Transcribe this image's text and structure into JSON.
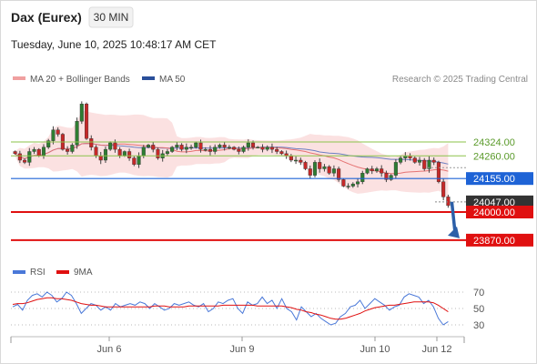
{
  "header": {
    "instrument": "Dax (Eurex)",
    "timeframe": "30 MIN",
    "datetime": "Tuesday, June 10, 2025 10:48:17 AM CET"
  },
  "legend": {
    "ma20_label": "MA 20 + Bollinger Bands",
    "ma50_label": "MA 50",
    "copyright": "Research © 2025 Trading Central",
    "rsi_label": "RSI",
    "rsi_ma_label": "9MA"
  },
  "colors": {
    "up": "#2e7d32",
    "down": "#c62828",
    "bollinger": "#f8c8c8",
    "ma20": "#e57373",
    "ma50": "#6b7fc2",
    "resistance_green": "#8bc34a",
    "pivot_blue": "#1e63d6",
    "support_red": "#e01010",
    "current_price_bg": "#333333",
    "arrow": "#2c5fa8",
    "rsi": "#4a78d8",
    "rsi_ma": "#e01010"
  },
  "chart_data": {
    "type": "candlestick",
    "title": "Dax (Eurex) 30 MIN",
    "x_ticks": [
      "Jun 6",
      "Jun 9",
      "Jun 10",
      "Jun 12"
    ],
    "y_axis": {
      "ylim": [
        23760,
        24560
      ]
    },
    "levels": [
      {
        "name": "resistance-2",
        "value": 24324.0,
        "label": "24324.00",
        "style": "thin-green"
      },
      {
        "name": "resistance-1",
        "value": 24260.0,
        "label": "24260.00",
        "style": "thin-green"
      },
      {
        "name": "pivot",
        "value": 24155.0,
        "label": "24155.00",
        "style": "blue-box"
      },
      {
        "name": "current-price",
        "value": 24047.0,
        "label": "24047.00",
        "style": "dark-box"
      },
      {
        "name": "support-1",
        "value": 24000.0,
        "label": "24000.00",
        "style": "red-box"
      },
      {
        "name": "target",
        "value": 23870.0,
        "label": "23870.00",
        "style": "red-box"
      }
    ],
    "candles_close": [
      24270,
      24240,
      24230,
      24280,
      24290,
      24260,
      24300,
      24330,
      24380,
      24360,
      24290,
      24280,
      24310,
      24420,
      24500,
      24340,
      24300,
      24260,
      24240,
      24290,
      24320,
      24290,
      24260,
      24280,
      24250,
      24220,
      24260,
      24300,
      24310,
      24290,
      24250,
      24270,
      24280,
      24300,
      24310,
      24290,
      24300,
      24300,
      24320,
      24290,
      24290,
      24280,
      24300,
      24310,
      24300,
      24300,
      24290,
      24280,
      24300,
      24320,
      24300,
      24300,
      24290,
      24300,
      24290,
      24280,
      24270,
      24260,
      24240,
      24240,
      24230,
      24200,
      24170,
      24230,
      24200,
      24210,
      24180,
      24200,
      24150,
      24120,
      24120,
      24130,
      24140,
      24180,
      24200,
      24190,
      24200,
      24180,
      24150,
      24170,
      24230,
      24250,
      24260,
      24250,
      24230,
      24240,
      24200,
      24240,
      24230,
      24140,
      24070,
      24030
    ],
    "rsi": {
      "ylim": [
        20,
        80
      ],
      "ticks": [
        70,
        50,
        30
      ],
      "values": [
        52,
        55,
        48,
        60,
        66,
        68,
        64,
        70,
        66,
        58,
        62,
        70,
        66,
        56,
        44,
        50,
        56,
        54,
        48,
        52,
        48,
        56,
        52,
        54,
        56,
        54,
        58,
        56,
        50,
        56,
        52,
        48,
        50,
        56,
        54,
        56,
        58,
        54,
        52,
        56,
        46,
        50,
        58,
        56,
        60,
        62,
        50,
        44,
        58,
        54,
        56,
        64,
        56,
        60,
        50,
        62,
        50,
        46,
        36,
        52,
        46,
        40,
        44,
        38,
        34,
        30,
        32,
        40,
        44,
        52,
        54,
        60,
        50,
        56,
        62,
        58,
        54,
        48,
        52,
        54,
        64,
        68,
        66,
        64,
        56,
        60,
        52,
        38,
        30,
        34
      ],
      "ma9_values": [
        55,
        56,
        56,
        57,
        59,
        61,
        62,
        63,
        63,
        62,
        62,
        61,
        60,
        58,
        56,
        55,
        54,
        54,
        53,
        52,
        52,
        52,
        52,
        52,
        52,
        52,
        52,
        52,
        52,
        53,
        53,
        53,
        52,
        52,
        52,
        52,
        53,
        53,
        53,
        53,
        53,
        53,
        53,
        54,
        54,
        54,
        54,
        54,
        54,
        54,
        53,
        53,
        53,
        53,
        53,
        53,
        52,
        51,
        49,
        48,
        46,
        45,
        43,
        42,
        40,
        38,
        37,
        37,
        38,
        40,
        42,
        44,
        47,
        49,
        51,
        52,
        53,
        54,
        54,
        55,
        56,
        57,
        58,
        58,
        58,
        58,
        57,
        54,
        50,
        46
      ]
    }
  }
}
